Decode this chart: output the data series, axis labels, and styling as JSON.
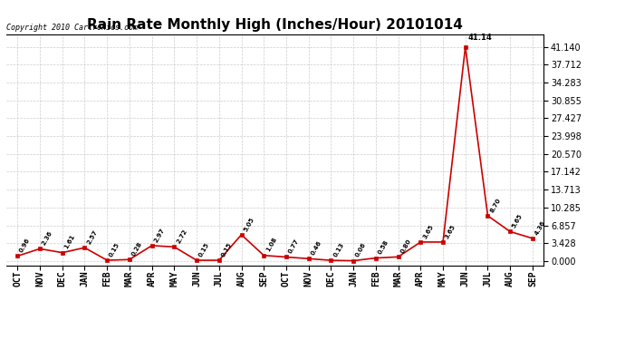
{
  "title": "Rain Rate Monthly High (Inches/Hour) 20101014",
  "copyright": "Copyright 2010 Cartronics.com",
  "categories": [
    "OCT",
    "NOV",
    "DEC",
    "JAN",
    "FEB",
    "MAR",
    "APR",
    "MAY",
    "JUN",
    "JUL",
    "AUG",
    "SEP",
    "OCT",
    "NOV",
    "DEC",
    "JAN",
    "FEB",
    "MAR",
    "APR",
    "MAY",
    "JUN",
    "JUL",
    "AUG",
    "SEP"
  ],
  "values": [
    0.96,
    2.36,
    1.61,
    2.57,
    0.15,
    0.28,
    2.97,
    2.72,
    0.15,
    0.15,
    5.05,
    1.08,
    0.77,
    0.46,
    0.13,
    0.06,
    0.58,
    0.8,
    3.65,
    3.65,
    41.14,
    8.7,
    5.65,
    4.36
  ],
  "point_labels": [
    "0.96",
    "2.36",
    "1.61",
    "2.57",
    "0.15",
    "0.28",
    "2.97",
    "2.72",
    "0.15",
    "0.15",
    "5.05",
    "1.08",
    "0.77",
    "0.46",
    "0.13",
    "0.06",
    "0.58",
    "0.80",
    "3.65",
    "3.65",
    "41.14",
    "8.70",
    "5.65",
    "4.36"
  ],
  "line_color": "#cc0000",
  "marker_color": "#cc0000",
  "background_color": "#ffffff",
  "grid_color": "#cccccc",
  "y_ticks": [
    0.0,
    3.428,
    6.857,
    10.285,
    13.713,
    17.142,
    20.57,
    23.998,
    27.427,
    30.855,
    34.283,
    37.712,
    41.14
  ],
  "ylim_max": 41.14,
  "title_fontsize": 11,
  "tick_fontsize": 7,
  "annot_fontsize": 5,
  "copyright_fontsize": 6
}
